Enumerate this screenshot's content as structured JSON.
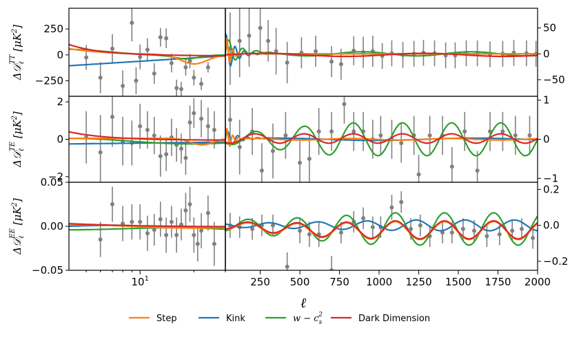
{
  "chart_data": {
    "type": "line",
    "title": "",
    "xlabel": "ℓ",
    "x_axis": {
      "left_scale": "log",
      "left_range": [
        4,
        30
      ],
      "left_ticks": [
        {
          "value": 10,
          "base": "10",
          "exp": "1"
        }
      ],
      "right_scale": "linear",
      "right_range": [
        30,
        2000
      ],
      "right_ticks": [
        "250",
        "500",
        "750",
        "1000",
        "1250",
        "1500",
        "1750",
        "2000"
      ]
    },
    "panels": [
      {
        "id": "TT",
        "ylabel": {
          "prefix": "Δ𝒟",
          "sub": "ℓ",
          "sup": "TT",
          "unit": "[μK",
          "unit_pow": "2",
          "close": "]"
        },
        "left_ylim": [
          -400,
          450
        ],
        "left_ticks": [
          "−250",
          "0",
          "250"
        ],
        "right_ylim": [
          -82,
          88
        ],
        "right_ticks": [
          "−50",
          "0",
          "50"
        ]
      },
      {
        "id": "TE",
        "ylabel": {
          "prefix": "Δ𝒟",
          "sub": "ℓ",
          "sup": "TE",
          "unit": "[μK",
          "unit_pow": "2",
          "close": "]"
        },
        "left_ylim": [
          -2.3,
          2.3
        ],
        "left_ticks": [
          "−2",
          "0",
          "2"
        ],
        "right_ylim": [
          -1.1,
          1.1
        ],
        "right_ticks": [
          "−1",
          "0",
          "1"
        ]
      },
      {
        "id": "EE",
        "ylabel": {
          "prefix": "Δ𝒟",
          "sub": "ℓ",
          "sup": "EE",
          "unit": "[μK",
          "unit_pow": "2",
          "close": "]"
        },
        "left_ylim": [
          -0.05,
          0.05
        ],
        "left_ticks": [
          "−0.05",
          "0.00",
          "0.05"
        ],
        "right_ylim": [
          -0.25,
          0.24
        ],
        "right_ticks": [
          "−0.2",
          "0.0",
          "0.2"
        ]
      }
    ],
    "series": [
      {
        "name": "Step",
        "color": "#ff7f0e"
      },
      {
        "name": "Kink",
        "color": "#1f77b4"
      },
      {
        "name": "w − c_s^2",
        "color": "#2ca02c",
        "math": true,
        "base": "w − c",
        "sub": "s",
        "sup": "2"
      },
      {
        "name": "Dark Dimension",
        "color": "#d62728"
      }
    ],
    "data_points": {
      "TT_low": [
        [
          5,
          -25,
          120
        ],
        [
          6,
          -220,
          150
        ],
        [
          7,
          60,
          140
        ],
        [
          8,
          -300,
          150
        ],
        [
          9,
          310,
          180
        ],
        [
          9.5,
          -250,
          130
        ],
        [
          10,
          -20,
          120
        ],
        [
          11,
          50,
          110
        ],
        [
          12,
          -180,
          100
        ],
        [
          13,
          170,
          90
        ],
        [
          14,
          160,
          95
        ],
        [
          15,
          -80,
          90
        ],
        [
          16,
          -320,
          80
        ],
        [
          17,
          -330,
          70
        ],
        [
          18,
          -120,
          80
        ],
        [
          19,
          -60,
          70
        ],
        [
          20,
          -220,
          75
        ],
        [
          22,
          -280,
          60
        ],
        [
          24,
          -120,
          50
        ]
      ],
      "TT_high": [
        [
          60,
          10,
          70
        ],
        [
          120,
          25,
          70
        ],
        [
          180,
          35,
          60
        ],
        [
          250,
          50,
          45
        ],
        [
          300,
          25,
          40
        ],
        [
          350,
          5,
          45
        ],
        [
          420,
          -17,
          40
        ],
        [
          510,
          2,
          30
        ],
        [
          600,
          5,
          30
        ],
        [
          700,
          -15,
          30
        ],
        [
          760,
          -20,
          30
        ],
        [
          840,
          6,
          28
        ],
        [
          900,
          3,
          30
        ],
        [
          960,
          5,
          30
        ],
        [
          1020,
          -4,
          25
        ],
        [
          1080,
          1,
          25
        ],
        [
          1150,
          -2,
          25
        ],
        [
          1220,
          0,
          25
        ],
        [
          1280,
          2,
          25
        ],
        [
          1350,
          1,
          25
        ],
        [
          1420,
          -3,
          25
        ],
        [
          1480,
          -3,
          25
        ],
        [
          1550,
          1,
          25
        ],
        [
          1620,
          1,
          25
        ],
        [
          1700,
          -1,
          25
        ],
        [
          1780,
          0,
          25
        ],
        [
          1850,
          2,
          25
        ],
        [
          1930,
          1,
          25
        ],
        [
          1990,
          0,
          25
        ]
      ],
      "TE_low": [
        [
          5,
          0.1,
          1.4
        ],
        [
          6,
          -0.7,
          2.0
        ],
        [
          7,
          1.2,
          1.6
        ],
        [
          8,
          -0.1,
          1.3
        ],
        [
          9,
          -0.2,
          1.2
        ],
        [
          10,
          0.7,
          1.2
        ],
        [
          11,
          0.5,
          1.0
        ],
        [
          12,
          0.2,
          1.0
        ],
        [
          13,
          -0.9,
          1.1
        ],
        [
          14,
          -0.8,
          0.9
        ],
        [
          15,
          0.1,
          1.0
        ],
        [
          16,
          -0.3,
          0.9
        ],
        [
          17,
          -0.5,
          0.8
        ],
        [
          18,
          -1.0,
          0.9
        ],
        [
          19,
          0.9,
          0.9
        ],
        [
          20,
          1.4,
          0.8
        ],
        [
          22,
          1.1,
          1.0
        ],
        [
          24,
          0.7,
          1.0
        ],
        [
          26,
          0.5,
          1.0
        ]
      ],
      "TE_high": [
        [
          60,
          0.5,
          0.7
        ],
        [
          120,
          -0.2,
          0.7
        ],
        [
          200,
          0.2,
          0.6
        ],
        [
          260,
          -0.8,
          0.7
        ],
        [
          330,
          -0.3,
          0.7
        ],
        [
          410,
          0.1,
          0.6
        ],
        [
          500,
          -0.6,
          0.6
        ],
        [
          560,
          -0.5,
          0.6
        ],
        [
          620,
          0.2,
          0.6
        ],
        [
          700,
          0.2,
          0.5
        ],
        [
          780,
          0.9,
          0.5
        ],
        [
          840,
          0.2,
          0.5
        ],
        [
          900,
          0.2,
          0.5
        ],
        [
          960,
          0.0,
          0.5
        ],
        [
          1010,
          0.1,
          0.5
        ],
        [
          1080,
          0.0,
          0.5
        ],
        [
          1140,
          -0.1,
          0.5
        ],
        [
          1220,
          0.1,
          0.5
        ],
        [
          1250,
          -0.9,
          0.5
        ],
        [
          1320,
          0.1,
          0.5
        ],
        [
          1400,
          0.1,
          0.5
        ],
        [
          1460,
          -0.7,
          0.5
        ],
        [
          1540,
          0.2,
          0.5
        ],
        [
          1620,
          -0.8,
          0.5
        ],
        [
          1700,
          0.2,
          0.5
        ],
        [
          1780,
          0.2,
          0.5
        ],
        [
          1860,
          0.1,
          0.5
        ],
        [
          1950,
          0.1,
          0.5
        ]
      ],
      "EE_low": [
        [
          6,
          -0.015,
          0.02
        ],
        [
          7,
          0.025,
          0.02
        ],
        [
          8,
          0.003,
          0.02
        ],
        [
          9,
          0.005,
          0.02
        ],
        [
          10,
          0.005,
          0.02
        ],
        [
          11,
          -0.008,
          0.02
        ],
        [
          12,
          -0.004,
          0.018
        ],
        [
          13,
          0.008,
          0.02
        ],
        [
          14,
          -0.01,
          0.02
        ],
        [
          15,
          0.005,
          0.018
        ],
        [
          16,
          -0.01,
          0.02
        ],
        [
          17,
          0.002,
          0.018
        ],
        [
          18,
          0.018,
          0.02
        ],
        [
          19,
          0.025,
          0.02
        ],
        [
          20,
          -0.01,
          0.02
        ],
        [
          21,
          -0.02,
          0.02
        ],
        [
          22,
          -0.005,
          0.02
        ],
        [
          24,
          0.015,
          0.02
        ],
        [
          26,
          -0.02,
          0.025
        ]
      ],
      "EE_high": [
        [
          60,
          0.0,
          0.07
        ],
        [
          120,
          -0.01,
          0.06
        ],
        [
          200,
          -0.02,
          0.06
        ],
        [
          260,
          0.0,
          0.06
        ],
        [
          330,
          0.0,
          0.06
        ],
        [
          420,
          -0.23,
          0.08
        ],
        [
          500,
          -0.03,
          0.07
        ],
        [
          560,
          -0.05,
          0.07
        ],
        [
          620,
          -0.05,
          0.07
        ],
        [
          700,
          -0.25,
          0.08
        ],
        [
          760,
          -0.04,
          0.06
        ],
        [
          840,
          0.02,
          0.06
        ],
        [
          900,
          0.04,
          0.06
        ],
        [
          960,
          -0.01,
          0.06
        ],
        [
          1010,
          -0.01,
          0.06
        ],
        [
          1080,
          0.1,
          0.07
        ],
        [
          1140,
          0.13,
          0.06
        ],
        [
          1200,
          -0.02,
          0.06
        ],
        [
          1260,
          0.0,
          0.06
        ],
        [
          1320,
          -0.06,
          0.06
        ],
        [
          1400,
          -0.04,
          0.06
        ],
        [
          1460,
          -0.04,
          0.06
        ],
        [
          1530,
          -0.02,
          0.06
        ],
        [
          1600,
          -0.03,
          0.06
        ],
        [
          1680,
          -0.06,
          0.06
        ],
        [
          1760,
          -0.05,
          0.06
        ],
        [
          1840,
          -0.03,
          0.06
        ],
        [
          1900,
          -0.02,
          0.06
        ],
        [
          1970,
          -0.07,
          0.06
        ]
      ]
    }
  }
}
